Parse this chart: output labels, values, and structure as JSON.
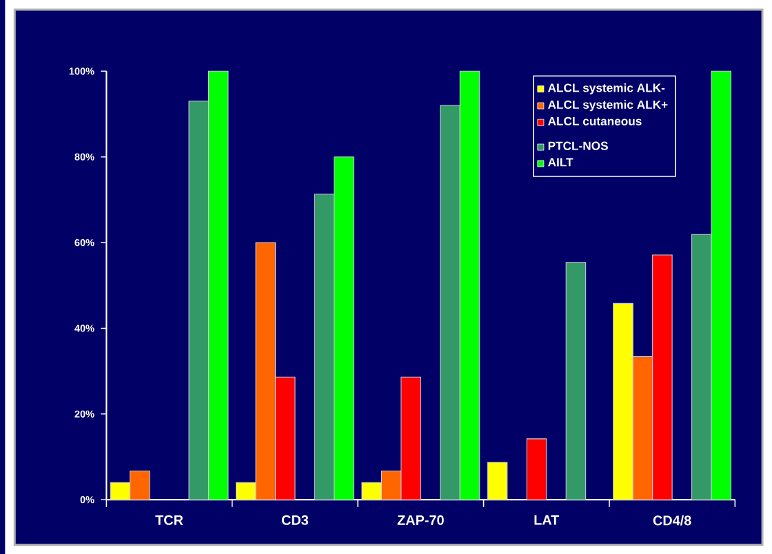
{
  "chart_data": {
    "type": "bar",
    "categories": [
      "TCR",
      "CD3",
      "ZAP-70",
      "LAT",
      "CD4/8"
    ],
    "series": [
      {
        "name": "ALCL systemic ALK-",
        "color": "#ffff00",
        "values": [
          4,
          4,
          4,
          8.7,
          45.8
        ]
      },
      {
        "name": "ALCL systemic ALK+",
        "color": "#ff6600",
        "values": [
          6.7,
          60,
          6.7,
          null,
          33.4
        ]
      },
      {
        "name": "ALCL cutaneous",
        "color": "#ff0000",
        "values": [
          null,
          28.6,
          28.6,
          14.2,
          57.1
        ]
      },
      {
        "name": "PTCL-NOS",
        "color": "#339966",
        "values": [
          93,
          71.3,
          92,
          55.4,
          61.9
        ]
      },
      {
        "name": "AILT",
        "color": "#00ff00",
        "values": [
          100,
          80,
          100,
          null,
          100
        ]
      }
    ],
    "ylim": [
      0,
      100
    ],
    "yticks": [
      {
        "value": 0,
        "label": "0%"
      },
      {
        "value": 20,
        "label": "20%"
      },
      {
        "value": 40,
        "label": "40%"
      },
      {
        "value": 60,
        "label": "60%"
      },
      {
        "value": 80,
        "label": "80%"
      },
      {
        "value": 100,
        "label": "100%"
      }
    ],
    "legend": "top right"
  }
}
